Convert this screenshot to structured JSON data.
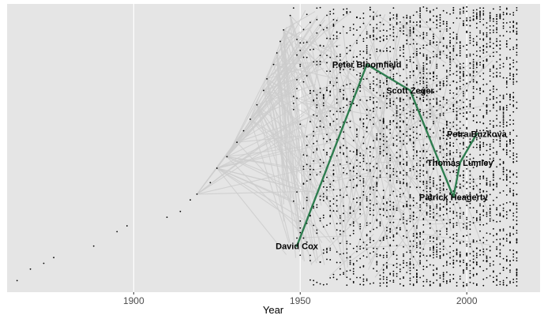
{
  "chart_data": {
    "type": "line",
    "xlabel": "Year",
    "xlim": [
      1862,
      2022
    ],
    "ylim": [
      0,
      1
    ],
    "xticks": [
      1900,
      1950,
      2000
    ],
    "xtick_labels": [
      "1900",
      "1950",
      "2000"
    ],
    "grid": true,
    "background_color": "#e5e5e5",
    "grid_color": "#ffffff",
    "edge_color": "#cccccc",
    "point_color": "#000000",
    "path_color": "#2e7d4f",
    "highlighted_path": {
      "points": [
        {
          "label": "David Cox",
          "year": 1949,
          "y": 0.16
        },
        {
          "label": "Peter Bloomfield",
          "year": 1970,
          "y": 0.79
        },
        {
          "label": "Scott Zeger",
          "year": 1983,
          "y": 0.7
        },
        {
          "label": "Patrick Heagerty",
          "year": 1996,
          "y": 0.33
        },
        {
          "label": "Thomas Lumley",
          "year": 1998,
          "y": 0.45
        },
        {
          "label": "Petra Buzkova",
          "year": 2003,
          "y": 0.55
        }
      ]
    },
    "early_points": [
      {
        "year": 1865,
        "y": 0.04
      },
      {
        "year": 1869,
        "y": 0.08
      },
      {
        "year": 1873,
        "y": 0.1
      },
      {
        "year": 1876,
        "y": 0.12
      },
      {
        "year": 1888,
        "y": 0.16
      },
      {
        "year": 1895,
        "y": 0.21
      },
      {
        "year": 1898,
        "y": 0.23
      },
      {
        "year": 1910,
        "y": 0.26
      },
      {
        "year": 1914,
        "y": 0.28
      },
      {
        "year": 1917,
        "y": 0.32
      },
      {
        "year": 1919,
        "y": 0.34
      },
      {
        "year": 1923,
        "y": 0.38
      },
      {
        "year": 1925,
        "y": 0.43
      },
      {
        "year": 1928,
        "y": 0.47
      },
      {
        "year": 1931,
        "y": 0.52
      },
      {
        "year": 1933,
        "y": 0.56
      },
      {
        "year": 1935,
        "y": 0.6
      },
      {
        "year": 1937,
        "y": 0.65
      },
      {
        "year": 1939,
        "y": 0.7
      },
      {
        "year": 1940,
        "y": 0.74
      },
      {
        "year": 1942,
        "y": 0.79
      },
      {
        "year": 1943,
        "y": 0.83
      },
      {
        "year": 1944,
        "y": 0.87
      },
      {
        "year": 1945,
        "y": 0.91
      },
      {
        "year": 1947,
        "y": 0.96
      }
    ],
    "cloud_range": {
      "x": [
        1947,
        2015
      ],
      "y": [
        0.02,
        0.99
      ]
    }
  }
}
